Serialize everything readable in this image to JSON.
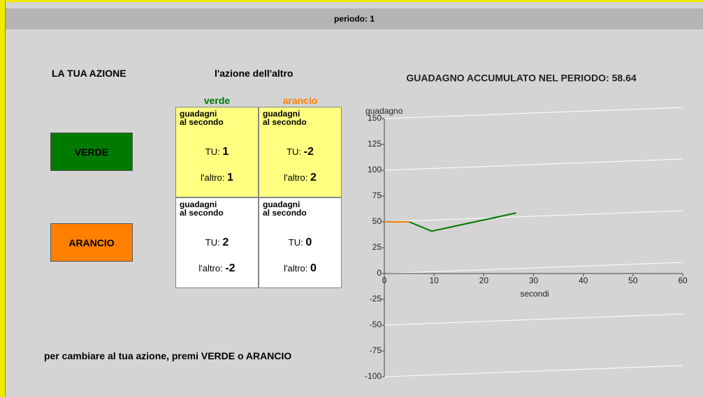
{
  "header": {
    "period": "periodo: 1"
  },
  "left": {
    "title": "LA TUA AZIONE",
    "buttons": [
      "VERDE",
      "ARANCIO"
    ]
  },
  "matrix": {
    "title": "l'azione dell'altro",
    "columns": [
      "verde",
      "arancio"
    ],
    "cells": [
      [
        {
          "line1": "guadagni",
          "line2": "al secondo",
          "you_label": "TU:",
          "you_value": 1,
          "other_label": "l'altro:",
          "other_value": 1
        },
        {
          "line1": "guadagni",
          "line2": "al secondo",
          "you_label": "TU:",
          "you_value": -2,
          "other_label": "l'altro:",
          "other_value": 2
        }
      ],
      [
        {
          "line1": "guadagni",
          "line2": "al secondo",
          "you_label": "TU:",
          "you_value": 2,
          "other_label": "l'altro:",
          "other_value": -2
        },
        {
          "line1": "guadagni",
          "line2": "al secondo",
          "you_label": "TU:",
          "you_value": 0,
          "other_label": "l'altro:",
          "other_value": 0
        }
      ]
    ]
  },
  "instruction": "per cambiare al tua azione, premi VERDE o ARANCIO",
  "chart_data": {
    "type": "line",
    "title": "GUADAGNO ACCUMULATO NEL PERIODO: 58.64",
    "x_label": "secondi",
    "y_label": "guadagno",
    "xlim": [
      0,
      60
    ],
    "xticks": [
      0,
      10,
      20,
      30,
      40,
      50,
      60
    ],
    "ylim": [
      -100,
      150
    ],
    "yticks": [
      150,
      125,
      100,
      75,
      50,
      25,
      0,
      -25,
      -50,
      -75,
      -100
    ],
    "grid": true,
    "series": [
      {
        "color": "#f08000",
        "x": [
          0,
          5
        ],
        "values": [
          50,
          50
        ]
      },
      {
        "color": "#007a00",
        "x": [
          5,
          9.5,
          26.5
        ],
        "values": [
          50,
          41,
          58.64
        ]
      }
    ]
  }
}
